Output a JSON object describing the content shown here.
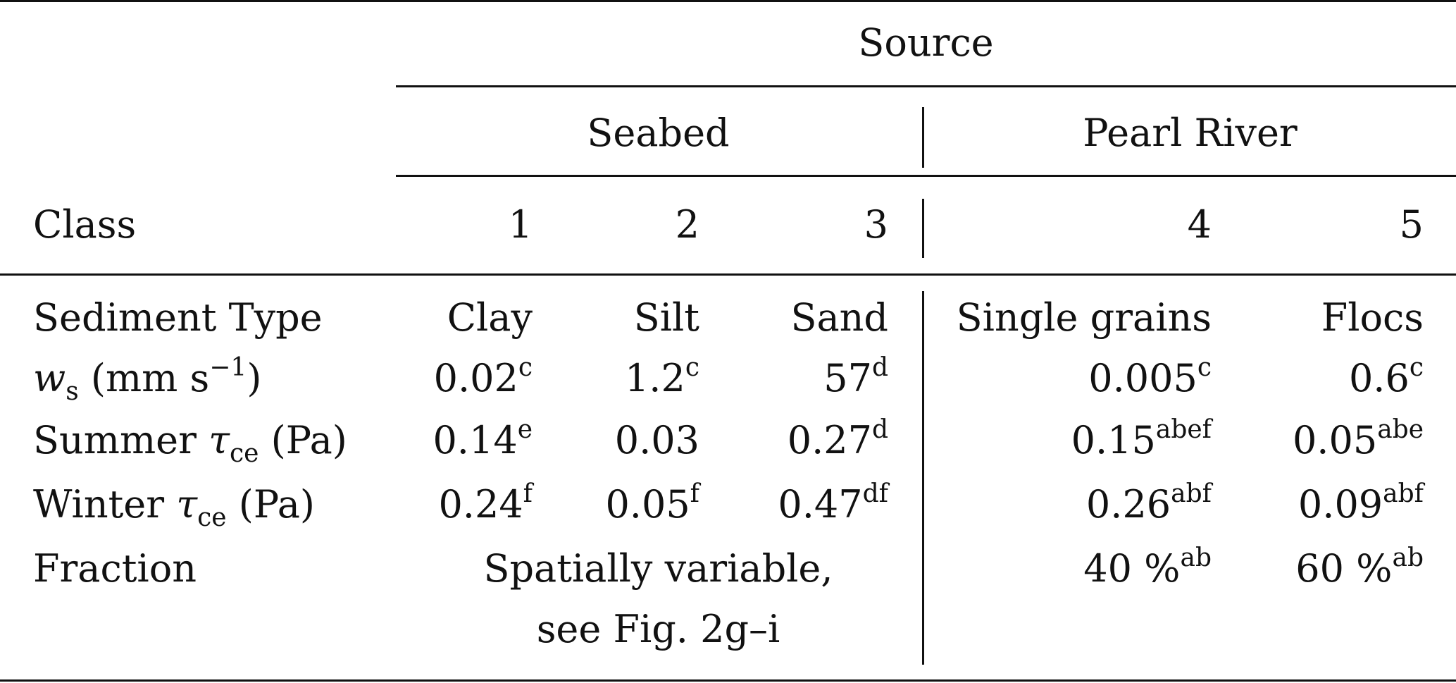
{
  "header": {
    "source": "Source",
    "seabed": "Seabed",
    "pearl_river": "Pearl River",
    "class_label": "Class",
    "classes": [
      "1",
      "2",
      "3",
      "4",
      "5"
    ]
  },
  "rows": {
    "sediment_type": {
      "label": "Sediment Type",
      "values": [
        "Clay",
        "Silt",
        "Sand",
        "Single grains",
        "Flocs"
      ]
    },
    "ws": {
      "symbol": "w",
      "symbol_sub": "s",
      "unit_open": " (mm s",
      "unit_exp": "−1",
      "unit_close": ")",
      "values": [
        "0.02",
        "1.2",
        "57",
        "0.005",
        "0.6"
      ],
      "notes": [
        "c",
        "c",
        "d",
        "c",
        "c"
      ]
    },
    "summer": {
      "label": "Summer ",
      "symbol": "τ",
      "symbol_sub": "ce",
      "unit": " (Pa)",
      "values": [
        "0.14",
        "0.03",
        "0.27",
        "0.15",
        "0.05"
      ],
      "notes": [
        "e",
        "",
        "d",
        "abef",
        "abe"
      ]
    },
    "winter": {
      "label": "Winter ",
      "symbol": "τ",
      "symbol_sub": "ce",
      "unit": " (Pa)",
      "values": [
        "0.24",
        "0.05",
        "0.47",
        "0.26",
        "0.09"
      ],
      "notes": [
        "f",
        "f",
        "df",
        "abf",
        "abf"
      ]
    },
    "fraction": {
      "label": "Fraction",
      "seabed_line1": "Spatially variable,",
      "seabed_line2": "see Fig. 2g–i",
      "values": [
        "40 %",
        "60 %"
      ],
      "notes": [
        "ab",
        "ab"
      ]
    }
  }
}
